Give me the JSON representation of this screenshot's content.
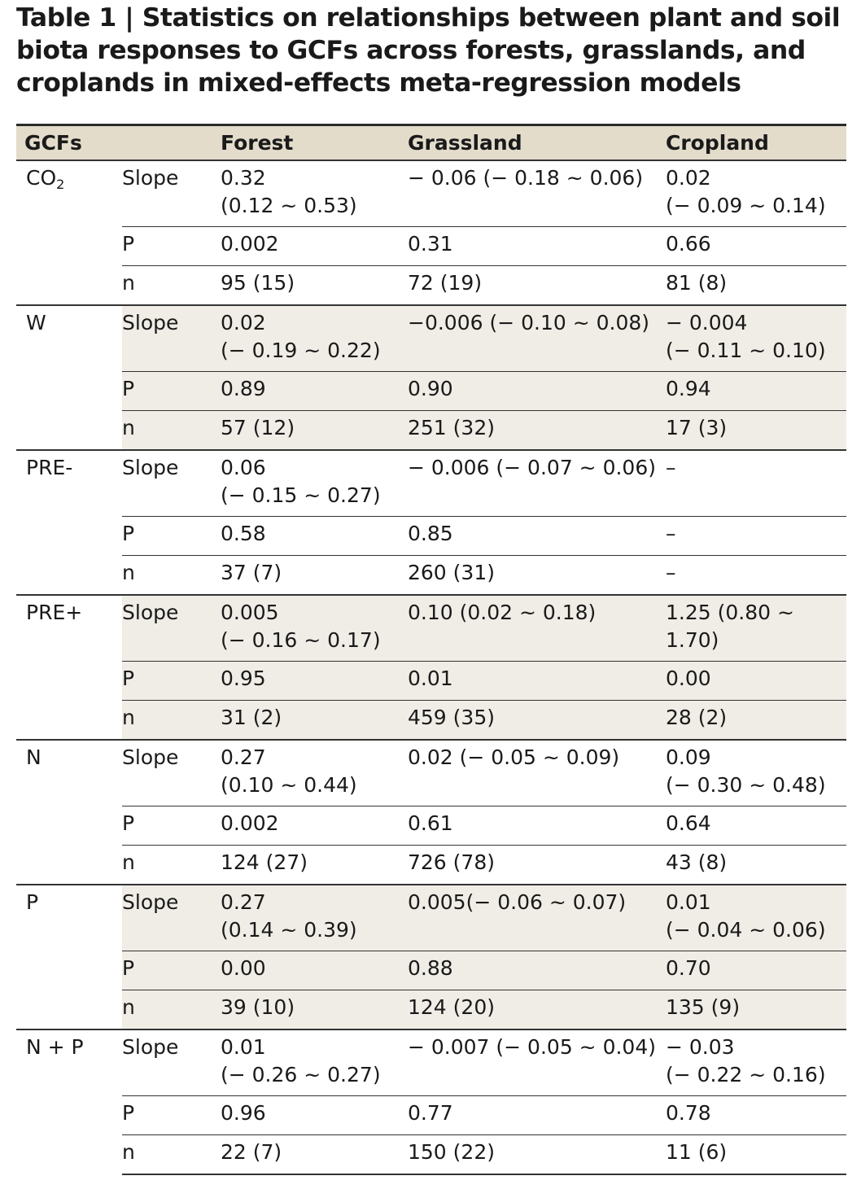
{
  "title": "Table 1 | Statistics on relationships between plant and soil biota responses to GCFs across forests, grasslands, and croplands in mixed-effects meta-regression models",
  "headers": {
    "gcf": "GCFs",
    "stat": "",
    "forest": "Forest",
    "grassland": "Grassland",
    "cropland": "Cropland"
  },
  "groups": [
    {
      "label": "CO",
      "sub": "2",
      "shade": false,
      "rows": [
        {
          "stat": "Slope",
          "forest": "0.32\n(0.12 ~ 0.53)",
          "grassland": "− 0.06 (− 0.18 ~ 0.06)",
          "cropland": "0.02\n(− 0.09 ~ 0.14)"
        },
        {
          "stat": "P",
          "forest": "0.002",
          "grassland": "0.31",
          "cropland": "0.66"
        },
        {
          "stat": "n",
          "forest": "95 (15)",
          "grassland": "72 (19)",
          "cropland": "81 (8)"
        }
      ]
    },
    {
      "label": "W",
      "sub": "",
      "shade": true,
      "rows": [
        {
          "stat": "Slope",
          "forest": "0.02\n(− 0.19 ~ 0.22)",
          "grassland": "−0.006 (− 0.10 ~ 0.08)",
          "cropland": "− 0.004\n(− 0.11 ~ 0.10)"
        },
        {
          "stat": "P",
          "forest": "0.89",
          "grassland": "0.90",
          "cropland": "0.94"
        },
        {
          "stat": "n",
          "forest": "57 (12)",
          "grassland": "251 (32)",
          "cropland": "17 (3)"
        }
      ]
    },
    {
      "label": "PRE-",
      "sub": "",
      "shade": false,
      "rows": [
        {
          "stat": "Slope",
          "forest": "0.06\n(− 0.15 ~ 0.27)",
          "grassland": "− 0.006 (− 0.07 ~ 0.06)",
          "cropland": "–"
        },
        {
          "stat": "P",
          "forest": "0.58",
          "grassland": "0.85",
          "cropland": "–"
        },
        {
          "stat": "n",
          "forest": "37 (7)",
          "grassland": "260 (31)",
          "cropland": "–"
        }
      ]
    },
    {
      "label": "PRE+",
      "sub": "",
      "shade": true,
      "rows": [
        {
          "stat": "Slope",
          "forest": "0.005\n(− 0.16 ~ 0.17)",
          "grassland": "0.10 (0.02 ~ 0.18)",
          "cropland": "1.25 (0.80 ~ 1.70)"
        },
        {
          "stat": "P",
          "forest": "0.95",
          "grassland": "0.01",
          "cropland": "0.00"
        },
        {
          "stat": "n",
          "forest": "31 (2)",
          "grassland": "459 (35)",
          "cropland": "28 (2)"
        }
      ]
    },
    {
      "label": "N",
      "sub": "",
      "shade": false,
      "rows": [
        {
          "stat": "Slope",
          "forest": "0.27\n(0.10 ~ 0.44)",
          "grassland": "0.02 (− 0.05 ~ 0.09)",
          "cropland": "0.09\n(− 0.30 ~ 0.48)"
        },
        {
          "stat": "P",
          "forest": "0.002",
          "grassland": "0.61",
          "cropland": "0.64"
        },
        {
          "stat": "n",
          "forest": "124 (27)",
          "grassland": "726 (78)",
          "cropland": "43 (8)"
        }
      ]
    },
    {
      "label": "P",
      "sub": "",
      "shade": true,
      "rows": [
        {
          "stat": "Slope",
          "forest": "0.27\n(0.14 ~ 0.39)",
          "grassland": "0.005(− 0.06 ~ 0.07)",
          "cropland": "0.01\n(− 0.04 ~ 0.06)"
        },
        {
          "stat": "P",
          "forest": "0.00",
          "grassland": "0.88",
          "cropland": "0.70"
        },
        {
          "stat": "n",
          "forest": "39 (10)",
          "grassland": "124 (20)",
          "cropland": "135 (9)"
        }
      ]
    },
    {
      "label": "N + P",
      "sub": "",
      "shade": false,
      "rows": [
        {
          "stat": "Slope",
          "forest": "0.01\n(− 0.26 ~ 0.27)",
          "grassland": "− 0.007 (− 0.05 ~ 0.04)",
          "cropland": "− 0.03\n(− 0.22 ~ 0.16)"
        },
        {
          "stat": "P",
          "forest": "0.96",
          "grassland": "0.77",
          "cropland": "0.78"
        },
        {
          "stat": "n",
          "forest": "22 (7)",
          "grassland": "150 (22)",
          "cropland": "11 (6)"
        }
      ]
    }
  ],
  "colors": {
    "header_bg": "#e3dccb",
    "shade_bg": "#f0ede6",
    "rule": "#333333"
  }
}
